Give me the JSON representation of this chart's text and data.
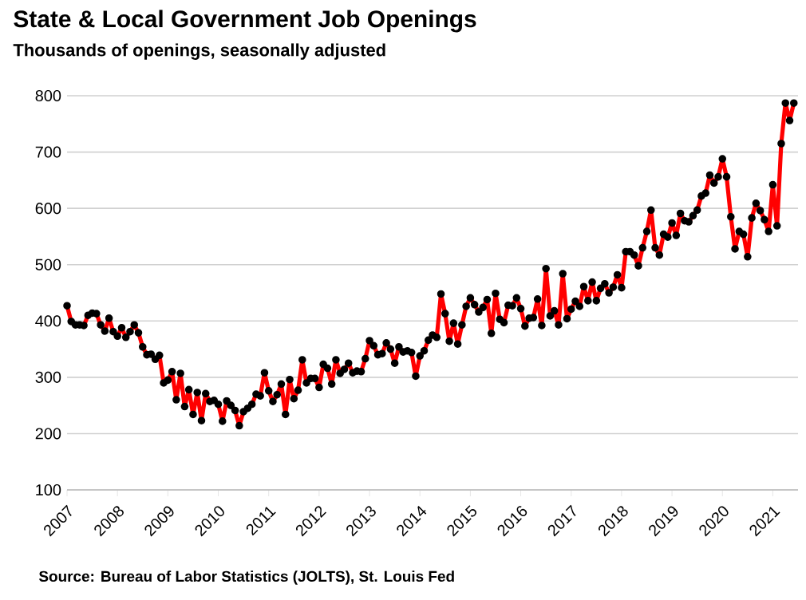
{
  "chart_data": {
    "type": "line",
    "title": "State & Local Government Job Openings",
    "subtitle": "Thousands of openings, seasonally adjusted",
    "annotations": [
      "Source: Bureau of Labor Statistics (JOLTS), St. Louis Fed"
    ],
    "x": [
      "2007-01",
      "2007-02",
      "2007-03",
      "2007-04",
      "2007-05",
      "2007-06",
      "2007-07",
      "2007-08",
      "2007-09",
      "2007-10",
      "2007-11",
      "2007-12",
      "2008-01",
      "2008-02",
      "2008-03",
      "2008-04",
      "2008-05",
      "2008-06",
      "2008-07",
      "2008-08",
      "2008-09",
      "2008-10",
      "2008-11",
      "2008-12",
      "2009-01",
      "2009-02",
      "2009-03",
      "2009-04",
      "2009-05",
      "2009-06",
      "2009-07",
      "2009-08",
      "2009-09",
      "2009-10",
      "2009-11",
      "2009-12",
      "2010-01",
      "2010-02",
      "2010-03",
      "2010-04",
      "2010-05",
      "2010-06",
      "2010-07",
      "2010-08",
      "2010-09",
      "2010-10",
      "2010-11",
      "2010-12",
      "2011-01",
      "2011-02",
      "2011-03",
      "2011-04",
      "2011-05",
      "2011-06",
      "2011-07",
      "2011-08",
      "2011-09",
      "2011-10",
      "2011-11",
      "2011-12",
      "2012-01",
      "2012-02",
      "2012-03",
      "2012-04",
      "2012-05",
      "2012-06",
      "2012-07",
      "2012-08",
      "2012-09",
      "2012-10",
      "2012-11",
      "2012-12",
      "2013-01",
      "2013-02",
      "2013-03",
      "2013-04",
      "2013-05",
      "2013-06",
      "2013-07",
      "2013-08",
      "2013-09",
      "2013-10",
      "2013-11",
      "2013-12",
      "2014-01",
      "2014-02",
      "2014-03",
      "2014-04",
      "2014-05",
      "2014-06",
      "2014-07",
      "2014-08",
      "2014-09",
      "2014-10",
      "2014-11",
      "2014-12",
      "2015-01",
      "2015-02",
      "2015-03",
      "2015-04",
      "2015-05",
      "2015-06",
      "2015-07",
      "2015-08",
      "2015-09",
      "2015-10",
      "2015-11",
      "2015-12",
      "2016-01",
      "2016-02",
      "2016-03",
      "2016-04",
      "2016-05",
      "2016-06",
      "2016-07",
      "2016-08",
      "2016-09",
      "2016-10",
      "2016-11",
      "2016-12",
      "2017-01",
      "2017-02",
      "2017-03",
      "2017-04",
      "2017-05",
      "2017-06",
      "2017-07",
      "2017-08",
      "2017-09",
      "2017-10",
      "2017-11",
      "2017-12",
      "2018-01",
      "2018-02",
      "2018-03",
      "2018-04",
      "2018-05",
      "2018-06",
      "2018-07",
      "2018-08",
      "2018-09",
      "2018-10",
      "2018-11",
      "2018-12",
      "2019-01",
      "2019-02",
      "2019-03",
      "2019-04",
      "2019-05",
      "2019-06",
      "2019-07",
      "2019-08",
      "2019-09",
      "2019-10",
      "2019-11",
      "2019-12",
      "2020-01",
      "2020-02",
      "2020-03",
      "2020-04",
      "2020-05",
      "2020-06",
      "2020-07",
      "2020-08",
      "2020-09",
      "2020-10",
      "2020-11",
      "2020-12",
      "2021-01",
      "2021-02",
      "2021-03",
      "2021-04",
      "2021-05",
      "2021-06"
    ],
    "series": [
      {
        "color": "#ff0000",
        "values": [
          427,
          399,
          393,
          393,
          392,
          410,
          414,
          413,
          393,
          382,
          405,
          381,
          373,
          388,
          371,
          381,
          393,
          379,
          354,
          340,
          341,
          332,
          339,
          290,
          295,
          310,
          260,
          307,
          248,
          278,
          234,
          273,
          223,
          271,
          257,
          259,
          252,
          222,
          258,
          250,
          241,
          214,
          239,
          245,
          252,
          270,
          267,
          308,
          276,
          257,
          269,
          288,
          234,
          296,
          262,
          277,
          331,
          290,
          298,
          298,
          282,
          323,
          316,
          288,
          331,
          307,
          314,
          325,
          308,
          311,
          310,
          333,
          365,
          356,
          340,
          342,
          361,
          350,
          325,
          354,
          345,
          347,
          344,
          302,
          338,
          347,
          366,
          375,
          371,
          448,
          413,
          364,
          396,
          359,
          393,
          426,
          441,
          429,
          416,
          424,
          438,
          378,
          449,
          403,
          397,
          428,
          427,
          441,
          422,
          391,
          405,
          406,
          439,
          392,
          493,
          409,
          418,
          393,
          484,
          404,
          421,
          435,
          426,
          461,
          436,
          469,
          436,
          458,
          466,
          450,
          460,
          482,
          459,
          523,
          523,
          517,
          498,
          530,
          559,
          597,
          530,
          517,
          554,
          549,
          574,
          552,
          591,
          578,
          576,
          587,
          597,
          622,
          627,
          659,
          645,
          656,
          688,
          656,
          585,
          528,
          559,
          554,
          514,
          583,
          609,
          596,
          580,
          559,
          642,
          569,
          715,
          787,
          756,
          787
        ]
      }
    ],
    "xlim": [
      "2007-01",
      "2021-07"
    ],
    "xticks": [
      "2007",
      "2008",
      "2009",
      "2010",
      "2011",
      "2012",
      "2013",
      "2014",
      "2015",
      "2016",
      "2017",
      "2018",
      "2019",
      "2020",
      "2021"
    ],
    "ylim": [
      100,
      800
    ],
    "yticks": [
      100,
      200,
      300,
      400,
      500,
      600,
      700,
      800
    ],
    "grid": "y",
    "marker": "circle",
    "line_style": "solid"
  }
}
